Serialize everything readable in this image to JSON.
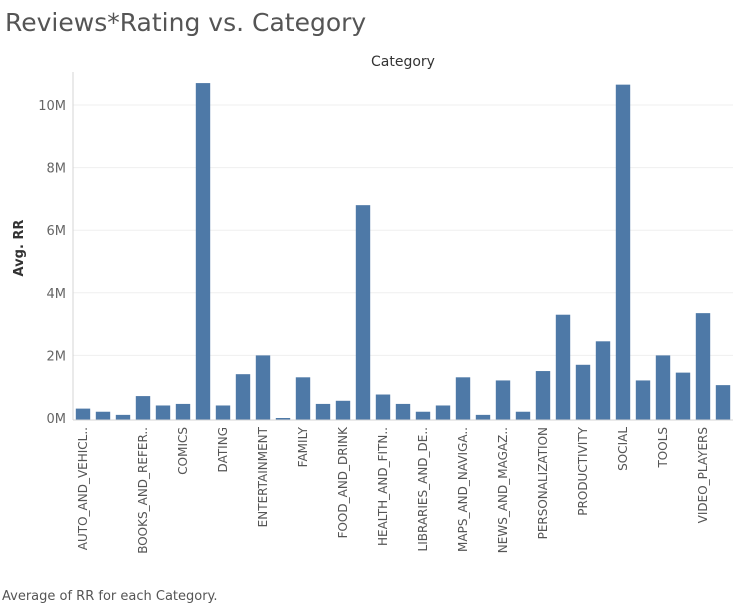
{
  "header": {
    "title": "Reviews*Rating vs. Category"
  },
  "footer": {
    "caption": "Average of RR for each Category."
  },
  "colors": {
    "bar": "#4e79a7",
    "grid": "#efefef",
    "axis": "#d4d4d4"
  },
  "chart_data": {
    "type": "bar",
    "title": "Category",
    "xlabel": "",
    "ylabel": "Avg. RR",
    "ylim": [
      0,
      11000000
    ],
    "yticks": [
      {
        "value": 0,
        "label": "0M"
      },
      {
        "value": 2000000,
        "label": "2M"
      },
      {
        "value": 4000000,
        "label": "4M"
      },
      {
        "value": 6000000,
        "label": "6M"
      },
      {
        "value": 8000000,
        "label": "8M"
      },
      {
        "value": 10000000,
        "label": "10M"
      }
    ],
    "grid": true,
    "categories": [
      "AUTO_AND_VEHICL..",
      "",
      "",
      "BOOKS_AND_REFER..",
      "",
      "COMICS",
      "",
      "DATING",
      "",
      "ENTERTAINMENT",
      "",
      "FAMILY",
      "",
      "FOOD_AND_DRINK",
      "",
      "HEALTH_AND_FITN..",
      "",
      "LIBRARIES_AND_DE..",
      "",
      "MAPS_AND_NAVIGA..",
      "",
      "NEWS_AND_MAGAZ..",
      "",
      "PERSONALIZATION",
      "",
      "PRODUCTIVITY",
      "",
      "SOCIAL",
      "",
      "TOOLS",
      "",
      "VIDEO_PLAYERS",
      ""
    ],
    "values": [
      300000,
      200000,
      100000,
      700000,
      400000,
      450000,
      10700000,
      400000,
      1400000,
      2000000,
      0,
      1300000,
      450000,
      550000,
      6800000,
      750000,
      450000,
      200000,
      400000,
      1300000,
      100000,
      1200000,
      200000,
      1500000,
      3300000,
      1700000,
      2450000,
      10650000,
      1200000,
      2000000,
      1450000,
      3350000,
      1050000
    ]
  }
}
